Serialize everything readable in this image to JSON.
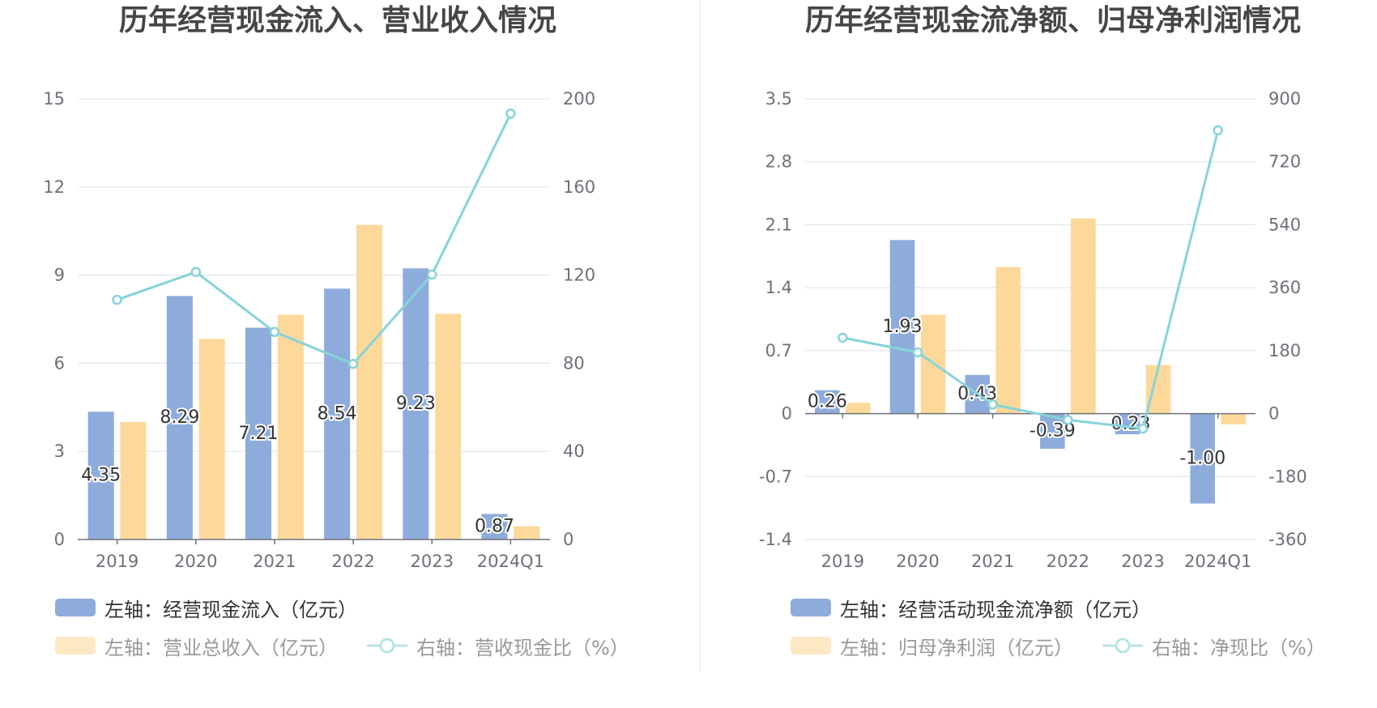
{
  "chart_data": [
    {
      "type": "bar",
      "title": "历年经营现金流入、营业收入情况",
      "categories": [
        "2019",
        "2020",
        "2021",
        "2022",
        "2023",
        "2024Q1"
      ],
      "y_left": {
        "ticks": [
          0,
          3,
          6,
          9,
          12,
          15
        ],
        "lim": [
          0,
          15
        ]
      },
      "y_right": {
        "ticks": [
          0,
          40,
          80,
          120,
          160,
          200
        ],
        "lim": [
          0,
          200
        ]
      },
      "grid": true,
      "legend_position": "bottom-left",
      "series": [
        {
          "name": "左轴：经营现金流入（亿元）",
          "type": "bar",
          "axis": "left",
          "color": "#8eacdb",
          "values": [
            4.35,
            8.29,
            7.21,
            8.54,
            9.23,
            0.87
          ],
          "labels": [
            "4.35",
            "8.29",
            "7.21",
            "8.54",
            "9.23",
            "0.87"
          ]
        },
        {
          "name": "左轴：营业总收入（亿元）",
          "type": "bar",
          "axis": "left",
          "color": "#fdd89b",
          "values": [
            4.0,
            6.83,
            7.65,
            10.71,
            7.68,
            0.45
          ]
        },
        {
          "name": "右轴：营收现金比（%）",
          "type": "line",
          "axis": "right",
          "color": "#86d3d9",
          "values": [
            108.8,
            121.4,
            94.2,
            79.7,
            120.2,
            193.3
          ]
        }
      ]
    },
    {
      "type": "bar",
      "title": "历年经营现金流净额、归母净利润情况",
      "categories": [
        "2019",
        "2020",
        "2021",
        "2022",
        "2023",
        "2024Q1"
      ],
      "y_left": {
        "ticks": [
          -1.4,
          -0.7,
          0,
          0.7,
          1.4,
          2.1,
          2.8,
          3.5
        ],
        "lim": [
          -1.4,
          3.5
        ]
      },
      "y_right": {
        "ticks": [
          -360,
          -180,
          0,
          180,
          360,
          540,
          720,
          900
        ],
        "lim": [
          -360,
          900
        ]
      },
      "grid": true,
      "legend_position": "bottom-left",
      "series": [
        {
          "name": "左轴：经营活动现金流净额（亿元）",
          "type": "bar",
          "axis": "left",
          "color": "#8eacdb",
          "values": [
            0.26,
            1.93,
            0.43,
            -0.39,
            -0.23,
            -1.0
          ],
          "labels": [
            "0.26",
            "1.93",
            "0.43",
            "-0.39",
            "-0.23",
            "-1.00"
          ]
        },
        {
          "name": "左轴：归母净利润（亿元）",
          "type": "bar",
          "axis": "left",
          "color": "#fdd89b",
          "values": [
            0.12,
            1.1,
            1.63,
            2.17,
            0.54,
            -0.12
          ]
        },
        {
          "name": "右轴：净现比（%）",
          "type": "line",
          "axis": "right",
          "color": "#86d3d9",
          "values": [
            217,
            175,
            26,
            -18,
            -43,
            810
          ]
        }
      ]
    }
  ]
}
